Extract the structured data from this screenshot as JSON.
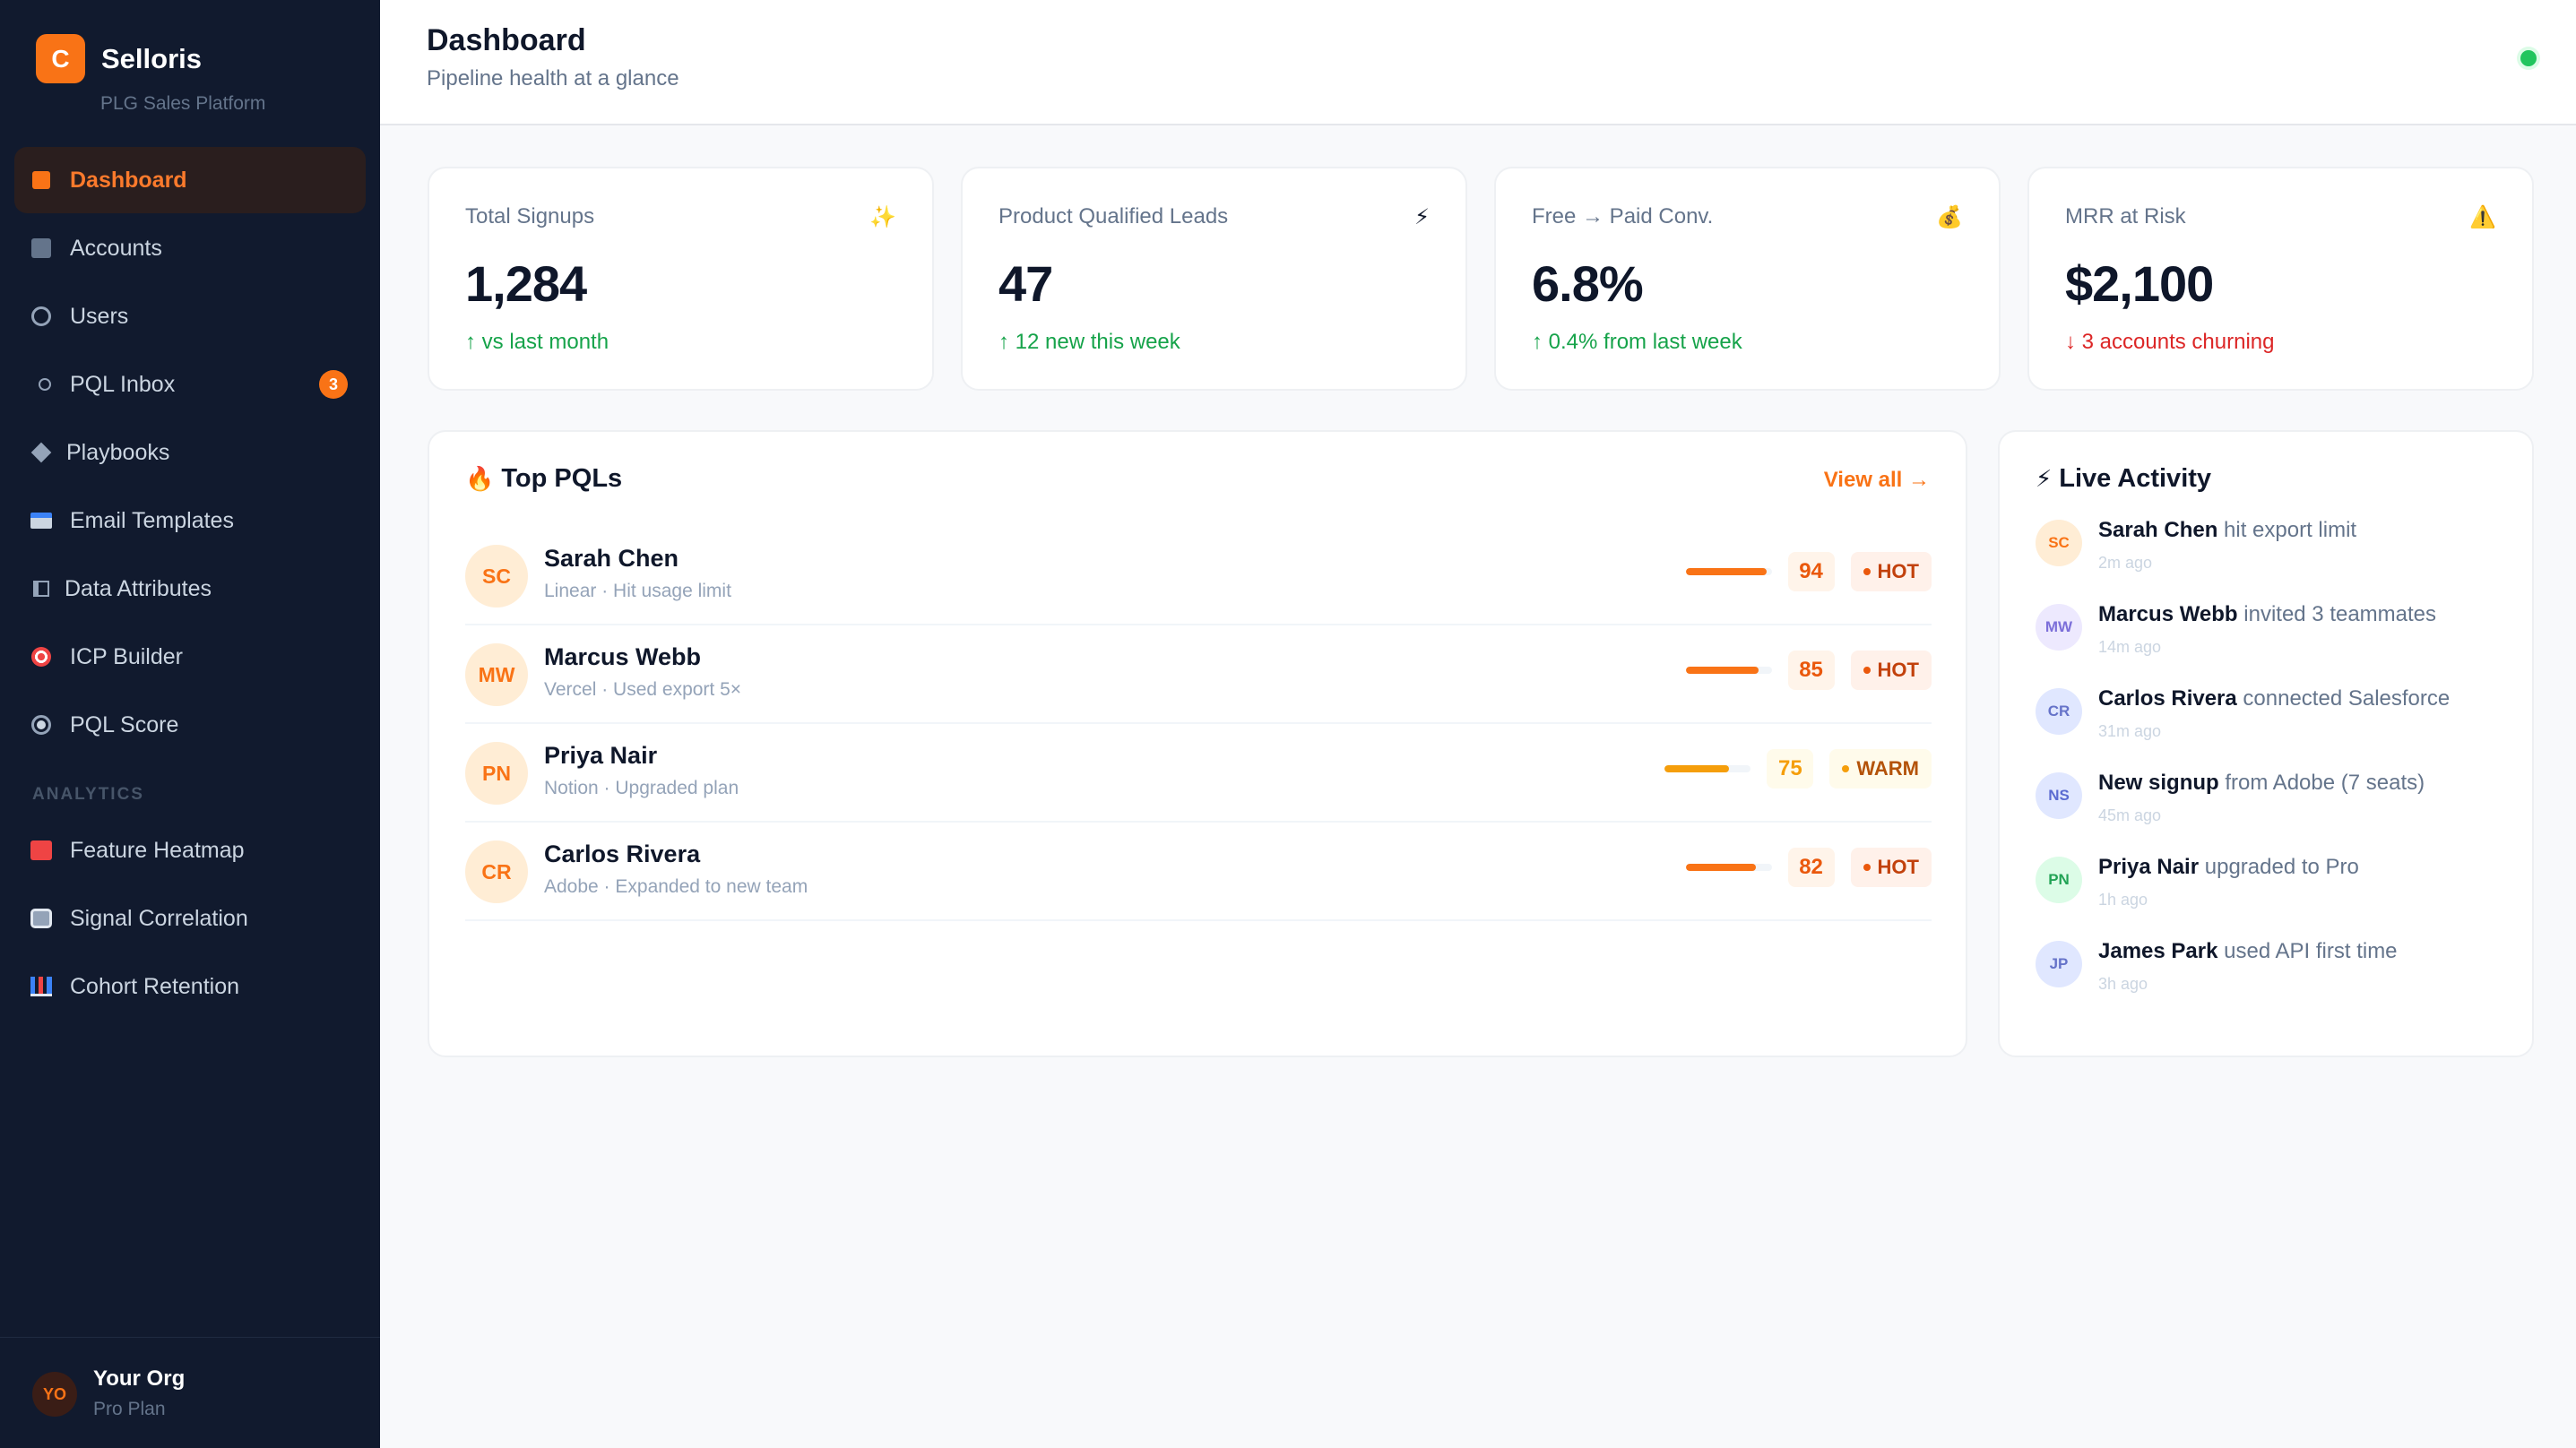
{
  "brand": {
    "logo_letter": "C",
    "name": "Selloris",
    "tagline": "PLG Sales Platform"
  },
  "nav": {
    "items": [
      {
        "label": "Dashboard",
        "icon": "dashboard-square-icon",
        "active": true
      },
      {
        "label": "Accounts",
        "icon": "building-icon"
      },
      {
        "label": "Users",
        "icon": "users-ring-icon"
      },
      {
        "label": "PQL Inbox",
        "icon": "inbox-circle-icon",
        "badge": "3"
      },
      {
        "label": "Playbooks",
        "icon": "diamond-icon"
      },
      {
        "label": "Email Templates",
        "icon": "envelope-icon"
      },
      {
        "label": "Data Attributes",
        "icon": "columns-icon"
      },
      {
        "label": "ICP Builder",
        "icon": "target-icon"
      },
      {
        "label": "PQL Score",
        "icon": "radio-dot-icon"
      }
    ],
    "section_label": "ANALYTICS",
    "analytics_items": [
      {
        "label": "Feature Heatmap",
        "icon": "heatmap-icon"
      },
      {
        "label": "Signal Correlation",
        "icon": "correlation-icon"
      },
      {
        "label": "Cohort Retention",
        "icon": "bar-chart-icon"
      }
    ]
  },
  "org": {
    "initials": "YO",
    "name": "Your Org",
    "plan": "Pro Plan"
  },
  "header": {
    "title": "Dashboard",
    "subtitle": "Pipeline health at a glance",
    "status_color": "#22c55e"
  },
  "stats": [
    {
      "label": "Total Signups",
      "icon": "✨",
      "value": "1,284",
      "delta": "↑ vs last month",
      "trend": "up"
    },
    {
      "label": "Product Qualified Leads",
      "icon": "⚡",
      "value": "47",
      "delta": "↑ 12 new this week",
      "trend": "up"
    },
    {
      "label": "Free → Paid Conv.",
      "icon": "💰",
      "value": "6.8%",
      "delta": "↑ 0.4% from last week",
      "trend": "up"
    },
    {
      "label": "MRR at Risk",
      "icon": "⚠️",
      "value": "$2,100",
      "delta": "↓ 3 accounts churning",
      "trend": "down"
    }
  ],
  "top_pqls": {
    "title_icon": "🔥",
    "title": "Top PQLs",
    "view_all": "View all →",
    "rows": [
      {
        "initials": "SC",
        "name": "Sarah Chen",
        "meta": "Linear · Hit usage limit",
        "score": "94",
        "tag": "HOT"
      },
      {
        "initials": "MW",
        "name": "Marcus Webb",
        "meta": "Vercel · Used export 5×",
        "score": "85",
        "tag": "HOT"
      },
      {
        "initials": "PN",
        "name": "Priya Nair",
        "meta": "Notion · Upgraded plan",
        "score": "75",
        "tag": "WARM"
      },
      {
        "initials": "CR",
        "name": "Carlos Rivera",
        "meta": "Adobe · Expanded to new team",
        "score": "82",
        "tag": "HOT"
      }
    ]
  },
  "activity": {
    "title_icon": "⚡",
    "title": "Live Activity",
    "items": [
      {
        "initials": "SC",
        "who": "Sarah Chen",
        "what": " hit export limit",
        "time": "2m ago",
        "bg": "#ffedd5",
        "fg": "#f97316"
      },
      {
        "initials": "MW",
        "who": "Marcus Webb",
        "what": " invited 3 teammates",
        "time": "14m ago",
        "bg": "#ede9fe",
        "fg": "#7c6fd9"
      },
      {
        "initials": "CR",
        "who": "Carlos Rivera",
        "what": " connected Salesforce",
        "time": "31m ago",
        "bg": "#e0e7ff",
        "fg": "#6673c9"
      },
      {
        "initials": "NS",
        "who": "New signup",
        "what": " from Adobe (7 seats)",
        "time": "45m ago",
        "bg": "#e0e7ff",
        "fg": "#5b6bd1"
      },
      {
        "initials": "PN",
        "who": "Priya Nair",
        "what": " upgraded to Pro",
        "time": "1h ago",
        "bg": "#dcfce7",
        "fg": "#22a355"
      },
      {
        "initials": "JP",
        "who": "James Park",
        "what": " used API first time",
        "time": "3h ago",
        "bg": "#e0e7ff",
        "fg": "#6673c9"
      }
    ]
  }
}
